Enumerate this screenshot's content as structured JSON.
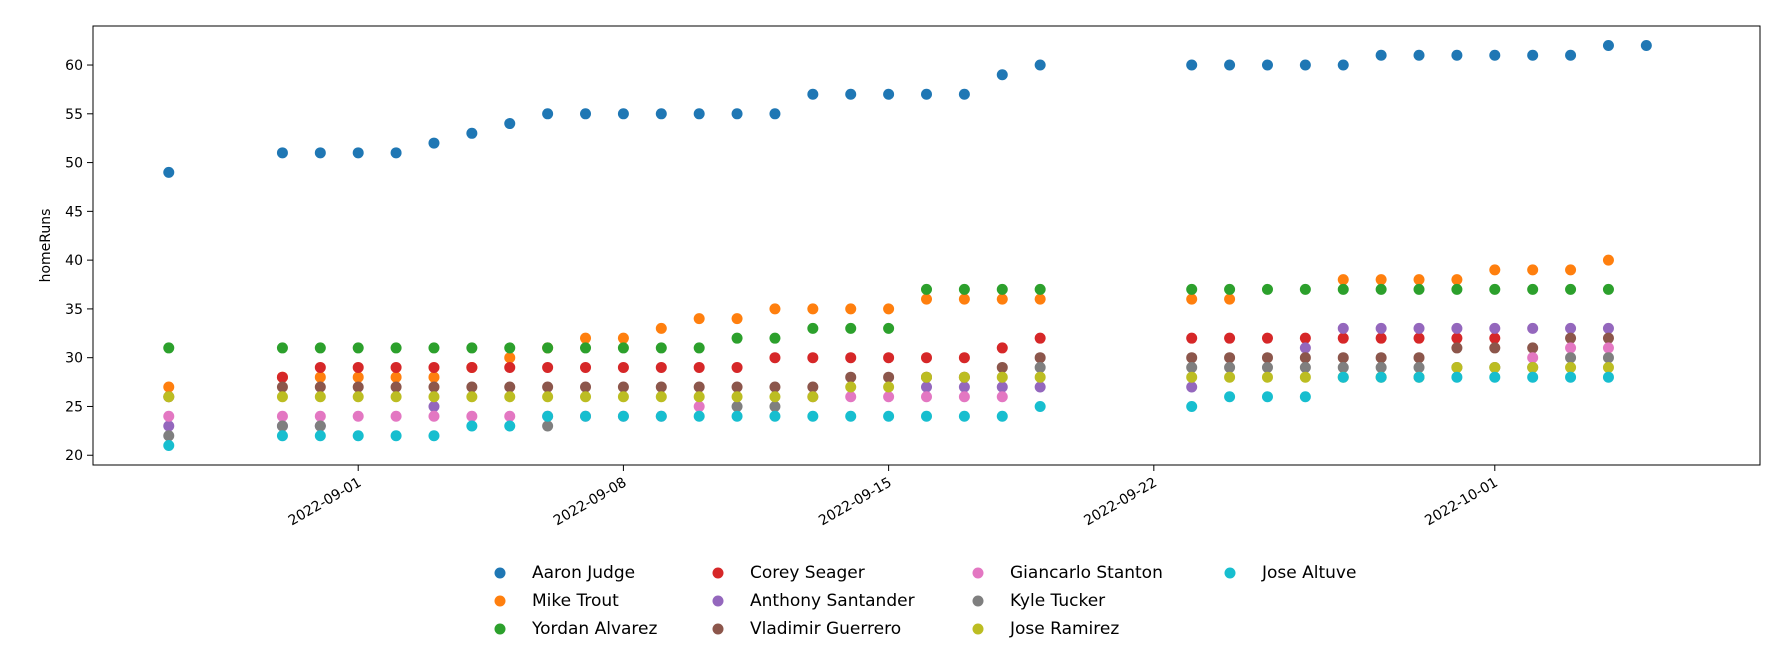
{
  "chart_data": {
    "type": "scatter",
    "title": "",
    "xlabel": "",
    "ylabel": "homeRuns",
    "ylim": [
      19,
      64
    ],
    "xlim": [
      "2022-08-26",
      "2022-10-07"
    ],
    "y_ticks": [
      20,
      25,
      30,
      35,
      40,
      45,
      50,
      55,
      60
    ],
    "x_ticks": [
      "2022-09-01",
      "2022-09-08",
      "2022-09-15",
      "2022-09-22",
      "2022-10-01"
    ],
    "grid": false,
    "legend_position": "below-center",
    "x": [
      "2022-08-27",
      "2022-08-30",
      "2022-08-31",
      "2022-09-01",
      "2022-09-02",
      "2022-09-03",
      "2022-09-04",
      "2022-09-05",
      "2022-09-06",
      "2022-09-07",
      "2022-09-08",
      "2022-09-09",
      "2022-09-10",
      "2022-09-11",
      "2022-09-12",
      "2022-09-13",
      "2022-09-14",
      "2022-09-15",
      "2022-09-16",
      "2022-09-17",
      "2022-09-18",
      "2022-09-19",
      "2022-09-23",
      "2022-09-24",
      "2022-09-25",
      "2022-09-26",
      "2022-09-27",
      "2022-09-28",
      "2022-09-29",
      "2022-09-30",
      "2022-10-01",
      "2022-10-02",
      "2022-10-03",
      "2022-10-04",
      "2022-10-05",
      "2022-10-06"
    ],
    "series": [
      {
        "name": "Aaron Judge",
        "color": "#1f77b4",
        "values": [
          49,
          51,
          51,
          51,
          51,
          52,
          53,
          54,
          55,
          55,
          55,
          55,
          55,
          55,
          55,
          57,
          57,
          57,
          57,
          57,
          59,
          60,
          60,
          60,
          60,
          60,
          60,
          61,
          61,
          61,
          61,
          61,
          61,
          62,
          62,
          null
        ]
      },
      {
        "name": "Mike Trout",
        "color": "#ff7f0e",
        "values": [
          27,
          28,
          28,
          28,
          28,
          28,
          29,
          30,
          31,
          32,
          32,
          33,
          34,
          34,
          35,
          35,
          35,
          35,
          36,
          36,
          36,
          36,
          36,
          36,
          null,
          null,
          38,
          38,
          38,
          38,
          39,
          39,
          39,
          40,
          null,
          null
        ]
      },
      {
        "name": "Yordan Alvarez",
        "color": "#2ca02c",
        "values": [
          31,
          31,
          31,
          31,
          31,
          31,
          31,
          31,
          31,
          31,
          31,
          31,
          31,
          32,
          32,
          33,
          33,
          33,
          37,
          37,
          37,
          37,
          37,
          37,
          37,
          37,
          37,
          37,
          37,
          37,
          37,
          37,
          37,
          37,
          null,
          null
        ]
      },
      {
        "name": "Corey Seager",
        "color": "#d62728",
        "values": [
          null,
          28,
          29,
          29,
          29,
          29,
          29,
          29,
          29,
          29,
          29,
          29,
          29,
          29,
          30,
          30,
          30,
          30,
          30,
          30,
          31,
          32,
          32,
          32,
          32,
          32,
          32,
          32,
          32,
          32,
          32,
          null,
          null,
          null,
          null,
          null
        ]
      },
      {
        "name": "Anthony Santander",
        "color": "#9467bd",
        "values": [
          23,
          23,
          23,
          null,
          null,
          25,
          null,
          null,
          null,
          null,
          null,
          null,
          null,
          null,
          null,
          null,
          null,
          null,
          27,
          27,
          27,
          27,
          27,
          null,
          null,
          31,
          33,
          33,
          33,
          33,
          33,
          33,
          33,
          33,
          null,
          null
        ]
      },
      {
        "name": "Vladimir Guerrero",
        "color": "#8c564b",
        "values": [
          26,
          27,
          27,
          27,
          27,
          27,
          27,
          27,
          27,
          27,
          27,
          27,
          27,
          27,
          27,
          27,
          28,
          28,
          28,
          28,
          29,
          30,
          30,
          30,
          30,
          30,
          30,
          30,
          30,
          31,
          31,
          31,
          32,
          32,
          null,
          null
        ]
      },
      {
        "name": "Giancarlo Stanton",
        "color": "#e377c2",
        "values": [
          24,
          24,
          24,
          24,
          24,
          24,
          24,
          24,
          24,
          24,
          24,
          24,
          25,
          null,
          null,
          26,
          26,
          26,
          26,
          26,
          26,
          null,
          null,
          null,
          null,
          null,
          null,
          null,
          null,
          null,
          null,
          30,
          31,
          31,
          null,
          null
        ]
      },
      {
        "name": "Kyle Tucker",
        "color": "#7f7f7f",
        "values": [
          22,
          23,
          23,
          null,
          null,
          null,
          null,
          null,
          23,
          null,
          null,
          null,
          null,
          25,
          25,
          null,
          null,
          null,
          null,
          null,
          null,
          29,
          29,
          29,
          29,
          29,
          29,
          29,
          29,
          29,
          29,
          29,
          30,
          30,
          null,
          null
        ]
      },
      {
        "name": "Jose Ramirez",
        "color": "#bcbd22",
        "values": [
          26,
          26,
          26,
          26,
          26,
          26,
          26,
          26,
          26,
          26,
          26,
          26,
          26,
          26,
          26,
          26,
          27,
          27,
          28,
          28,
          28,
          28,
          28,
          28,
          28,
          28,
          28,
          28,
          28,
          29,
          29,
          29,
          29,
          29,
          null,
          null
        ]
      },
      {
        "name": "Jose Altuve",
        "color": "#17becf",
        "values": [
          21,
          22,
          22,
          22,
          22,
          22,
          23,
          23,
          24,
          24,
          24,
          24,
          24,
          24,
          24,
          24,
          24,
          24,
          24,
          24,
          24,
          25,
          25,
          26,
          26,
          26,
          28,
          28,
          28,
          28,
          28,
          28,
          28,
          28,
          null,
          null
        ]
      }
    ]
  }
}
